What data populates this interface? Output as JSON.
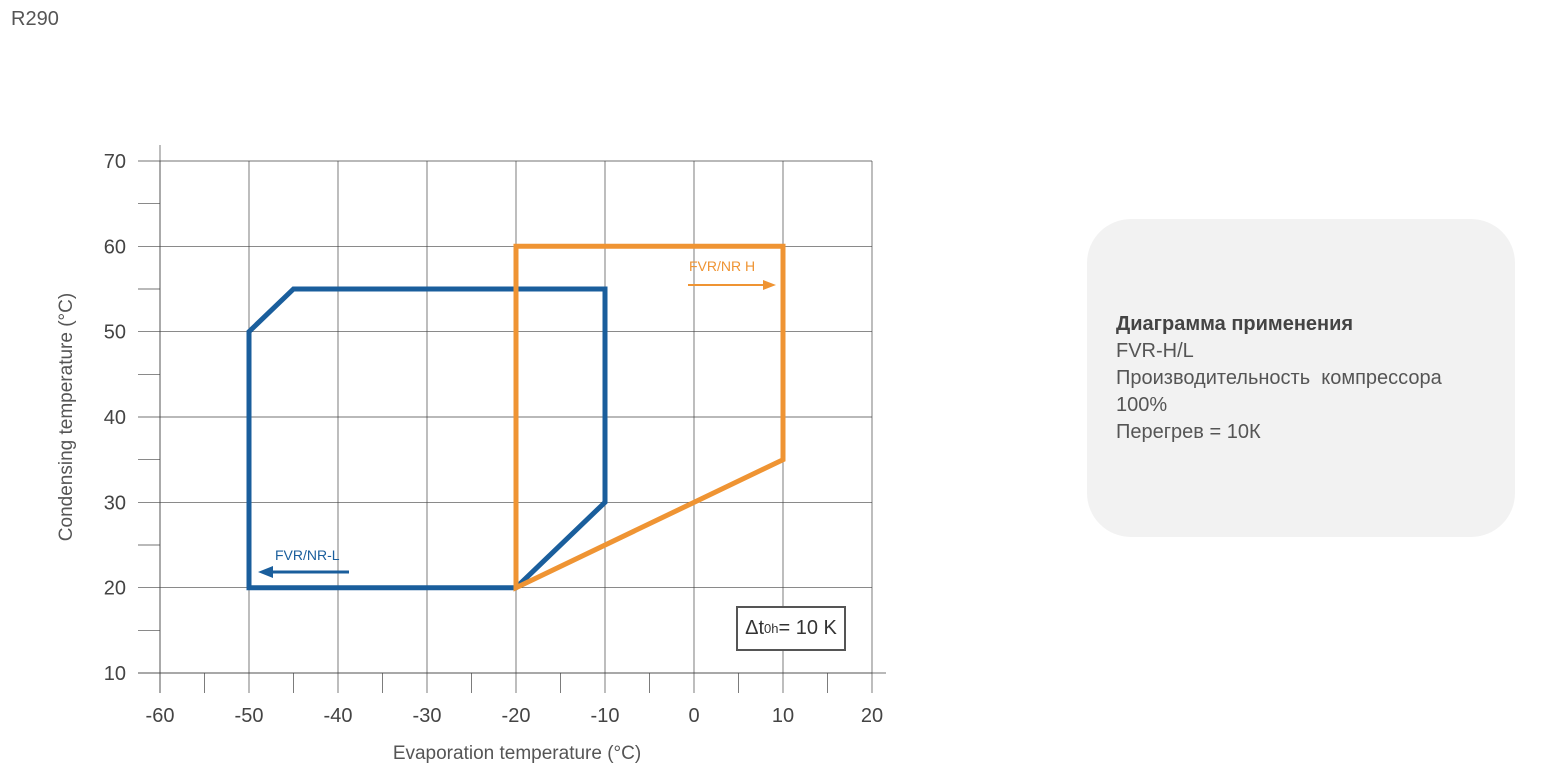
{
  "page": {
    "title": "R290"
  },
  "chart_data": {
    "type": "line",
    "xlabel": "Evaporation temperature (°C)",
    "ylabel": "Condensing temperature (°C)",
    "xlim": [
      -60,
      20
    ],
    "ylim": [
      10,
      70
    ],
    "x_ticks": [
      -60,
      -50,
      -40,
      -30,
      -20,
      -10,
      0,
      10,
      20
    ],
    "y_ticks": [
      10,
      20,
      30,
      40,
      50,
      60,
      70
    ],
    "grid": true,
    "series": [
      {
        "name": "FVR/NR-L",
        "color": "#1a5e9c",
        "closed": true,
        "points": [
          [
            -50,
            20
          ],
          [
            -20,
            20
          ],
          [
            -10,
            30
          ],
          [
            -10,
            55
          ],
          [
            -45,
            55
          ],
          [
            -50,
            50
          ]
        ]
      },
      {
        "name": "FVR/NR H",
        "color": "#ef9433",
        "closed": true,
        "points": [
          [
            -20,
            20
          ],
          [
            10,
            35
          ],
          [
            10,
            60
          ],
          [
            -20,
            60
          ]
        ]
      }
    ],
    "annotation": {
      "prefix": "Δt",
      "subscript": "0h",
      "suffix": " = 10 K"
    }
  },
  "info": {
    "heading": "Диаграмма применения",
    "lines": [
      "FVR-H/L",
      "Производительность  компрессора",
      "100%",
      "Перегрев = 10К"
    ]
  }
}
